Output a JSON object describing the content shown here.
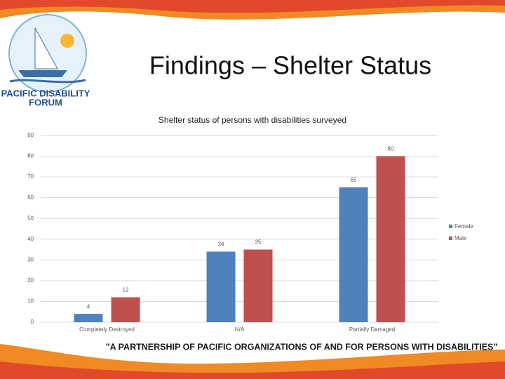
{
  "slide": {
    "title": "Findings – Shelter Status",
    "footer": "\"A PARTNERSHIP OF PACIFIC ORGANIZATIONS OF AND FOR PERSONS WITH DISABILITIES\""
  },
  "logo": {
    "line1": "PACIFIC DISABILITY",
    "line2": "FORUM"
  },
  "chart_data": {
    "type": "bar",
    "title": "Shelter status of persons with disabilities surveyed",
    "categories": [
      "Completely Destroyed",
      "N/A",
      "Partially Damaged"
    ],
    "series": [
      {
        "name": "Female",
        "color": "#4f81bd",
        "values": [
          4,
          34,
          65
        ]
      },
      {
        "name": "Male",
        "color": "#c0504d",
        "values": [
          12,
          35,
          80
        ]
      }
    ],
    "ylim": [
      0,
      90
    ],
    "yticks": [
      0,
      10,
      20,
      30,
      40,
      50,
      60,
      70,
      80,
      90
    ],
    "grid": true,
    "legend": "right"
  }
}
